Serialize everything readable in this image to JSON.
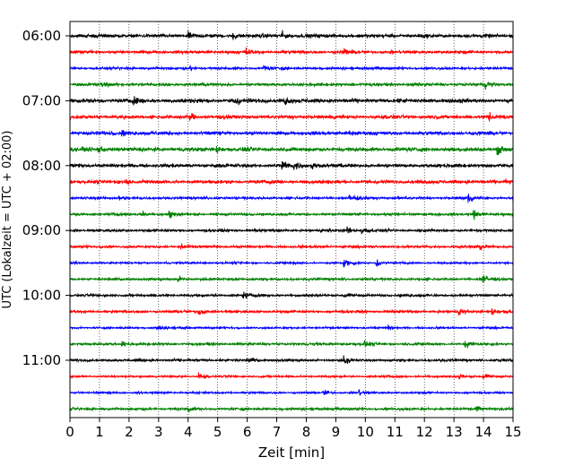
{
  "chart_data": {
    "type": "line",
    "subtype": "helicorder",
    "title": "",
    "xlabel": "Zeit  [min]",
    "ylabel": "UTC (Lokalzeit = UTC + 02:00)",
    "xlim": [
      0,
      15
    ],
    "x_ticks": [
      0,
      1,
      2,
      3,
      4,
      5,
      6,
      7,
      8,
      9,
      10,
      11,
      12,
      13,
      14,
      15
    ],
    "x_tick_labels": [
      "0",
      "1",
      "2",
      "3",
      "4",
      "5",
      "6",
      "7",
      "8",
      "9",
      "10",
      "11",
      "12",
      "13",
      "14",
      "15"
    ],
    "y_tick_labels": [
      "06:00",
      "07:00",
      "08:00",
      "09:00",
      "10:00",
      "11:00"
    ],
    "grid": "vertical dotted lines at each minute",
    "trace_minutes": 15,
    "trace_colors": [
      "#000000",
      "#ff0000",
      "#0000ff",
      "#008000"
    ],
    "traces": [
      {
        "start": "06:00",
        "amp": 0.35,
        "events": [
          [
            5.5,
            0.9
          ],
          [
            4.0,
            0.5
          ],
          [
            7.2,
            0.6
          ]
        ]
      },
      {
        "start": "06:15",
        "amp": 0.3,
        "events": [
          [
            6.0,
            0.55
          ],
          [
            9.3,
            0.5
          ]
        ]
      },
      {
        "start": "06:30",
        "amp": 0.25,
        "events": [
          [
            6.6,
            0.45
          ],
          [
            4.1,
            0.3
          ]
        ]
      },
      {
        "start": "06:45",
        "amp": 0.3,
        "events": [
          [
            14.1,
            0.6
          ],
          [
            1.1,
            0.35
          ]
        ]
      },
      {
        "start": "07:00",
        "amp": 0.4,
        "events": [
          [
            5.6,
            1.0
          ],
          [
            2.2,
            0.5
          ],
          [
            7.3,
            0.5
          ]
        ]
      },
      {
        "start": "07:15",
        "amp": 0.35,
        "events": [
          [
            4.1,
            0.6
          ],
          [
            14.2,
            0.5
          ]
        ]
      },
      {
        "start": "07:30",
        "amp": 0.35,
        "events": [
          [
            1.8,
            0.45
          ],
          [
            9.5,
            0.4
          ]
        ]
      },
      {
        "start": "07:45",
        "amp": 0.4,
        "events": [
          [
            14.5,
            0.7
          ],
          [
            1.0,
            0.5
          ],
          [
            5.0,
            0.5
          ]
        ]
      },
      {
        "start": "08:00",
        "amp": 0.35,
        "events": [
          [
            7.2,
            0.9
          ],
          [
            7.6,
            0.8
          ],
          [
            8.2,
            0.6
          ]
        ]
      },
      {
        "start": "08:15",
        "amp": 0.35,
        "events": [
          [
            1.9,
            0.5
          ],
          [
            14.8,
            0.4
          ]
        ]
      },
      {
        "start": "08:30",
        "amp": 0.25,
        "events": [
          [
            9.5,
            0.8
          ],
          [
            13.5,
            0.7
          ],
          [
            1.7,
            0.35
          ]
        ]
      },
      {
        "start": "08:45",
        "amp": 0.25,
        "events": [
          [
            3.4,
            0.7
          ],
          [
            13.7,
            0.8
          ],
          [
            2.5,
            0.4
          ]
        ]
      },
      {
        "start": "09:00",
        "amp": 0.25,
        "events": [
          [
            9.4,
            0.7
          ],
          [
            9.9,
            0.6
          ]
        ]
      },
      {
        "start": "09:15",
        "amp": 0.25,
        "events": [
          [
            3.8,
            0.6
          ],
          [
            13.9,
            0.6
          ]
        ]
      },
      {
        "start": "09:30",
        "amp": 0.2,
        "events": [
          [
            9.3,
            0.8
          ],
          [
            10.4,
            0.6
          ]
        ]
      },
      {
        "start": "09:45",
        "amp": 0.25,
        "events": [
          [
            14.0,
            0.8
          ],
          [
            3.7,
            0.4
          ]
        ]
      },
      {
        "start": "10:00",
        "amp": 0.25,
        "events": [
          [
            5.9,
            0.55
          ],
          [
            9.3,
            0.5
          ]
        ]
      },
      {
        "start": "10:15",
        "amp": 0.25,
        "events": [
          [
            4.4,
            0.6
          ],
          [
            13.2,
            0.6
          ],
          [
            14.3,
            0.6
          ]
        ]
      },
      {
        "start": "10:30",
        "amp": 0.2,
        "events": [
          [
            3.0,
            0.35
          ],
          [
            10.8,
            0.35
          ]
        ]
      },
      {
        "start": "10:45",
        "amp": 0.25,
        "events": [
          [
            13.4,
            0.7
          ],
          [
            10.0,
            0.5
          ],
          [
            1.8,
            0.4
          ]
        ]
      },
      {
        "start": "11:00",
        "amp": 0.25,
        "events": [
          [
            9.3,
            0.7
          ],
          [
            6.1,
            0.4
          ]
        ]
      },
      {
        "start": "11:15",
        "amp": 0.2,
        "events": [
          [
            4.4,
            0.6
          ],
          [
            13.2,
            0.6
          ],
          [
            14.0,
            0.55
          ]
        ]
      },
      {
        "start": "11:30",
        "amp": 0.2,
        "events": [
          [
            8.6,
            0.6
          ],
          [
            9.8,
            0.5
          ]
        ]
      },
      {
        "start": "11:45",
        "amp": 0.25,
        "events": [
          [
            4.0,
            0.5
          ],
          [
            13.8,
            0.55
          ]
        ]
      }
    ]
  }
}
